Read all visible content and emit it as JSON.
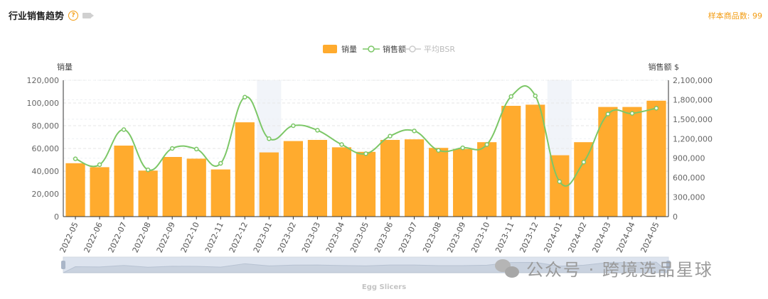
{
  "header": {
    "title": "行业销售趋势",
    "help_icon": "question-circle-icon",
    "video_icon": "video-camera-icon",
    "sample_count": "样本商品数: 99"
  },
  "subtitle": "Egg Slicers",
  "watermark": {
    "icon": "wechat-icon",
    "text": "公众号 · 跨境选品星球"
  },
  "colors": {
    "bar": "#FFAB2E",
    "line": "#7CC767",
    "bsr": "#CCCCCC",
    "highlight": "#F1F4F9"
  },
  "chart_data": {
    "type": "bar",
    "legend": {
      "placement": "top-center",
      "items": [
        {
          "name": "销量",
          "kind": "bar"
        },
        {
          "name": "销售额",
          "kind": "line"
        },
        {
          "name": "平均BSR",
          "kind": "line",
          "disabled": true
        }
      ]
    },
    "y_left_label": "销量",
    "y_right_label": "销售额 $",
    "y_left_ticks": [
      "0",
      "20,000",
      "40,000",
      "60,000",
      "80,000",
      "100,000",
      "120,000"
    ],
    "y_right_ticks": [
      "0",
      "300,000",
      "600,000",
      "900,000",
      "1,200,000",
      "1,500,000",
      "1,800,000",
      "2,100,000"
    ],
    "ylim_left": [
      0,
      120000
    ],
    "ylim_right": [
      0,
      2100000
    ],
    "grid": true,
    "highlighted_categories": [
      "2023-01",
      "2024-01"
    ],
    "categories": [
      "2022-05",
      "2022-06",
      "2022-07",
      "2022-08",
      "2022-09",
      "2022-10",
      "2022-11",
      "2022-12",
      "2023-01",
      "2023-02",
      "2023-03",
      "2023-04",
      "2023-05",
      "2023-06",
      "2023-07",
      "2023-08",
      "2023-09",
      "2023-10",
      "2023-11",
      "2023-12",
      "2024-01",
      "2024-02",
      "2024-03",
      "2024-04",
      "2024-05"
    ],
    "series": [
      {
        "name": "销量",
        "type": "bar",
        "axis": "left",
        "values": [
          47000,
          43500,
          62500,
          40500,
          52500,
          51000,
          41500,
          83000,
          56500,
          66500,
          67500,
          61000,
          57000,
          67500,
          68000,
          60500,
          59500,
          65500,
          97500,
          98500,
          54000,
          65500,
          96500,
          96500,
          102000
        ]
      },
      {
        "name": "销售额",
        "type": "line",
        "axis": "right",
        "values": [
          890000,
          800000,
          1340000,
          720000,
          1050000,
          1040000,
          820000,
          1840000,
          1200000,
          1400000,
          1330000,
          1110000,
          970000,
          1240000,
          1320000,
          1020000,
          1060000,
          1110000,
          1850000,
          1860000,
          540000,
          840000,
          1580000,
          1590000,
          1670000
        ]
      }
    ]
  }
}
